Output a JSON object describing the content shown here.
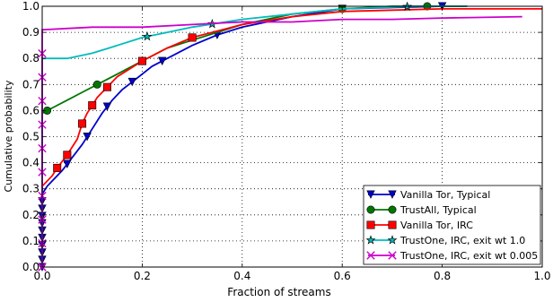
{
  "chart_data": {
    "type": "line",
    "title": "",
    "xlabel": "Fraction of streams",
    "ylabel": "Cumulative probability",
    "xlim": [
      0,
      1.0
    ],
    "ylim": [
      0,
      1.0
    ],
    "x_ticks": [
      "0.0",
      "0.2",
      "0.4",
      "0.6",
      "0.8",
      "1.0"
    ],
    "y_ticks": [
      "0.0",
      "0.1",
      "0.2",
      "0.3",
      "0.4",
      "0.5",
      "0.6",
      "0.7",
      "0.8",
      "0.9",
      "1.0"
    ],
    "grid": true,
    "legend_position": "bottom-right",
    "series": [
      {
        "name": "Vanilla Tor, Typical",
        "color": "#0000cc",
        "marker": "triangle-down",
        "points": [
          [
            0,
            0
          ],
          [
            0,
            0.28
          ],
          [
            0.01,
            0.31
          ],
          [
            0.02,
            0.33
          ],
          [
            0.04,
            0.37
          ],
          [
            0.06,
            0.42
          ],
          [
            0.08,
            0.47
          ],
          [
            0.1,
            0.53
          ],
          [
            0.12,
            0.59
          ],
          [
            0.14,
            0.64
          ],
          [
            0.16,
            0.68
          ],
          [
            0.18,
            0.71
          ],
          [
            0.2,
            0.74
          ],
          [
            0.22,
            0.77
          ],
          [
            0.25,
            0.8
          ],
          [
            0.3,
            0.85
          ],
          [
            0.35,
            0.89
          ],
          [
            0.4,
            0.92
          ],
          [
            0.5,
            0.96
          ],
          [
            0.6,
            0.99
          ],
          [
            0.8,
            1.0
          ]
        ],
        "marker_x": [
          0.0,
          0.0,
          0.0,
          0.0,
          0.0,
          0.0,
          0.0,
          0.0,
          0.0,
          0.0,
          0.05,
          0.09,
          0.13,
          0.18,
          0.24,
          0.35,
          0.6,
          0.8
        ]
      },
      {
        "name": "TrustAll, Typical",
        "color": "#007700",
        "marker": "circle",
        "points": [
          [
            0,
            0
          ],
          [
            0,
            0.59
          ],
          [
            0.02,
            0.61
          ],
          [
            0.05,
            0.64
          ],
          [
            0.08,
            0.67
          ],
          [
            0.11,
            0.7
          ],
          [
            0.15,
            0.74
          ],
          [
            0.2,
            0.79
          ],
          [
            0.25,
            0.84
          ],
          [
            0.3,
            0.87
          ],
          [
            0.35,
            0.9
          ],
          [
            0.4,
            0.93
          ],
          [
            0.5,
            0.97
          ],
          [
            0.6,
            0.99
          ],
          [
            0.7,
            1.0
          ],
          [
            0.85,
            1.0
          ]
        ],
        "marker_x": [
          0.01,
          0.11,
          0.2,
          0.6,
          0.77
        ]
      },
      {
        "name": "Vanilla Tor, IRC",
        "color": "#ff0000",
        "marker": "square",
        "points": [
          [
            0,
            0
          ],
          [
            0,
            0.31
          ],
          [
            0.02,
            0.35
          ],
          [
            0.03,
            0.38
          ],
          [
            0.05,
            0.43
          ],
          [
            0.07,
            0.49
          ],
          [
            0.08,
            0.55
          ],
          [
            0.09,
            0.59
          ],
          [
            0.11,
            0.65
          ],
          [
            0.13,
            0.69
          ],
          [
            0.15,
            0.73
          ],
          [
            0.2,
            0.79
          ],
          [
            0.25,
            0.84
          ],
          [
            0.3,
            0.88
          ],
          [
            0.4,
            0.93
          ],
          [
            0.5,
            0.96
          ],
          [
            0.6,
            0.98
          ],
          [
            0.8,
            0.99
          ],
          [
            1.0,
            0.99
          ]
        ],
        "marker_x": [
          0.03,
          0.05,
          0.08,
          0.1,
          0.13,
          0.2,
          0.3
        ]
      },
      {
        "name": "TrustOne, IRC, exit wt 1.0",
        "color": "#00bbbb",
        "marker": "star",
        "points": [
          [
            0,
            0
          ],
          [
            0,
            0.8
          ],
          [
            0.05,
            0.8
          ],
          [
            0.1,
            0.82
          ],
          [
            0.15,
            0.85
          ],
          [
            0.2,
            0.88
          ],
          [
            0.25,
            0.9
          ],
          [
            0.3,
            0.92
          ],
          [
            0.4,
            0.95
          ],
          [
            0.5,
            0.97
          ],
          [
            0.6,
            0.99
          ],
          [
            0.75,
            1.0
          ],
          [
            0.85,
            1.0
          ]
        ],
        "marker_x": [
          0.21,
          0.34,
          0.73
        ]
      },
      {
        "name": "TrustOne, IRC, exit wt 0.005",
        "color": "#cc00cc",
        "marker": "x",
        "points": [
          [
            0,
            0
          ],
          [
            0,
            0.91
          ],
          [
            0.1,
            0.92
          ],
          [
            0.2,
            0.92
          ],
          [
            0.3,
            0.93
          ],
          [
            0.4,
            0.94
          ],
          [
            0.5,
            0.94
          ],
          [
            0.6,
            0.95
          ],
          [
            0.7,
            0.95
          ],
          [
            0.8,
            0.955
          ],
          [
            0.96,
            0.96
          ]
        ],
        "marker_x": [
          0.0,
          0.0,
          0.0,
          0.0,
          0.0,
          0.0,
          0.0,
          0.0,
          0.0,
          0.0
        ]
      }
    ]
  }
}
